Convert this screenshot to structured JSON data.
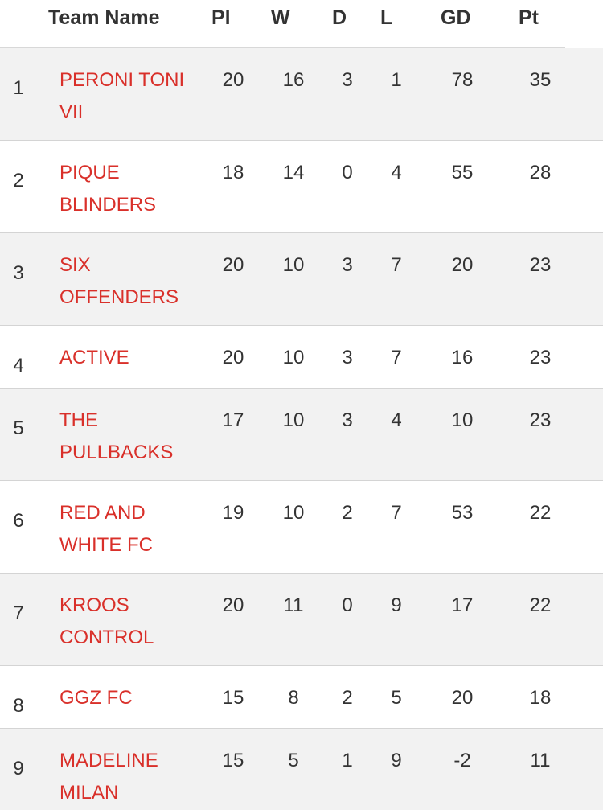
{
  "header": {
    "team_name": "Team Name",
    "pl": "Pl",
    "w": "W",
    "d": "D",
    "l": "L",
    "gd": "GD",
    "pt": "Pt"
  },
  "rows": [
    {
      "pos": "1",
      "team": "PERONI TONI VII",
      "pl": "20",
      "w": "16",
      "d": "3",
      "l": "1",
      "gd": "78",
      "pt": "35"
    },
    {
      "pos": "2",
      "team": "PIQUE BLINDERS",
      "pl": "18",
      "w": "14",
      "d": "0",
      "l": "4",
      "gd": "55",
      "pt": "28"
    },
    {
      "pos": "3",
      "team": "SIX OFFENDERS",
      "pl": "20",
      "w": "10",
      "d": "3",
      "l": "7",
      "gd": "20",
      "pt": "23"
    },
    {
      "pos": "4",
      "team": "ACTIVE",
      "pl": "20",
      "w": "10",
      "d": "3",
      "l": "7",
      "gd": "16",
      "pt": "23"
    },
    {
      "pos": "5",
      "team": "THE PULLBACKS",
      "pl": "17",
      "w": "10",
      "d": "3",
      "l": "4",
      "gd": "10",
      "pt": "23"
    },
    {
      "pos": "6",
      "team": "RED AND WHITE FC",
      "pl": "19",
      "w": "10",
      "d": "2",
      "l": "7",
      "gd": "53",
      "pt": "22"
    },
    {
      "pos": "7",
      "team": "KROOS CONTROL",
      "pl": "20",
      "w": "11",
      "d": "0",
      "l": "9",
      "gd": "17",
      "pt": "22"
    },
    {
      "pos": "8",
      "team": "GGZ FC",
      "pl": "15",
      "w": "8",
      "d": "2",
      "l": "5",
      "gd": "20",
      "pt": "18"
    },
    {
      "pos": "9",
      "team": "MADELINE MILAN",
      "pl": "15",
      "w": "5",
      "d": "1",
      "l": "9",
      "gd": "-2",
      "pt": "11"
    }
  ],
  "colors": {
    "team_link": "#d9302a",
    "odd_row": "#f2f2f2"
  }
}
